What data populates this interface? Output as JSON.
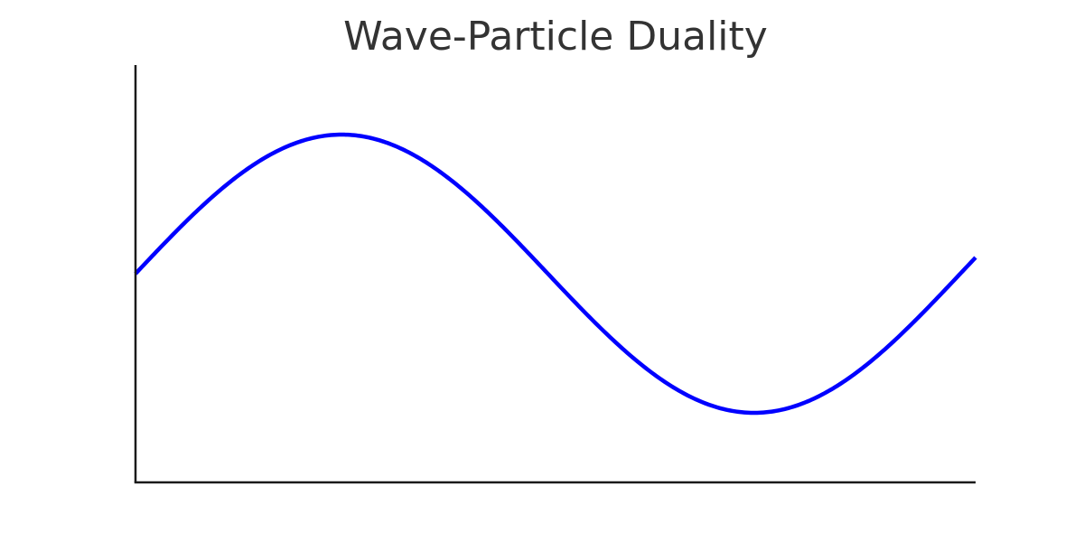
{
  "chart_data": {
    "type": "line",
    "title": "Wave-Particle Duality",
    "xlabel": "",
    "ylabel": "",
    "grid": false,
    "legend": "none",
    "xlim": [
      0,
      6.4
    ],
    "ylim": [
      -1.5,
      1.5
    ],
    "series": [
      {
        "function": "sin(x)",
        "x": [
          0.0,
          0.2,
          0.4,
          0.6,
          0.8,
          1.0,
          1.2,
          1.4,
          1.6,
          1.8,
          2.0,
          2.2,
          2.4,
          2.6,
          2.8,
          3.0,
          3.2,
          3.4,
          3.6,
          3.8,
          4.0,
          4.2,
          4.4,
          4.6,
          4.8,
          5.0,
          5.2,
          5.4,
          5.6,
          5.8,
          6.0,
          6.2,
          6.4
        ],
        "y": [
          0.0,
          0.1987,
          0.3894,
          0.5646,
          0.7174,
          0.8415,
          0.932,
          0.9854,
          0.9996,
          0.9738,
          0.9093,
          0.8085,
          0.6755,
          0.5155,
          0.335,
          0.1411,
          -0.0584,
          -0.2555,
          -0.4425,
          -0.6119,
          -0.7568,
          -0.8716,
          -0.9516,
          -0.9937,
          -0.9962,
          -0.9589,
          -0.8835,
          -0.7728,
          -0.6313,
          -0.4646,
          -0.2794,
          -0.0831,
          0.1165
        ],
        "color": "#0000ff"
      }
    ]
  }
}
